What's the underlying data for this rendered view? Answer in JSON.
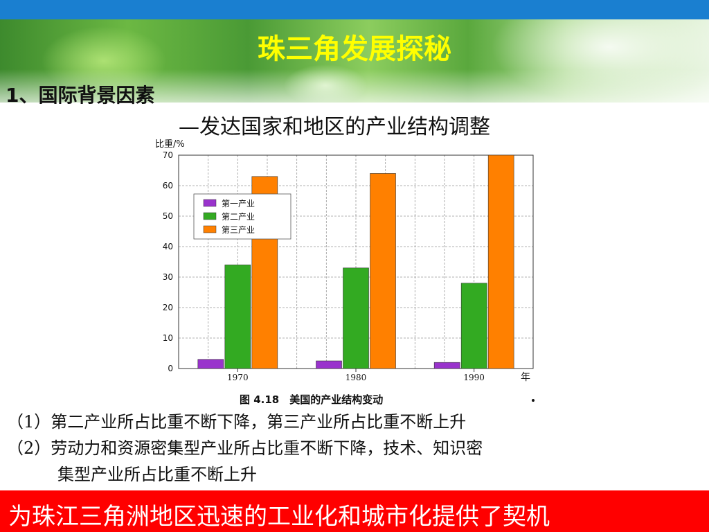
{
  "slide": {
    "title": "珠三角发展探秘",
    "heading": "1、国际背景因素",
    "subheading": "—发达国家和地区的产业结构调整",
    "points": [
      "（1）第二产业所占比重不断下降，第三产业所占比重不断上升",
      "（2）劳动力和资源密集型产业所占比重不断下降，技术、知识密",
      "集型产业所占比重不断上升"
    ],
    "conclusion": "为珠江三角洲地区迅速的工业化和城市化提供了契机"
  },
  "chart_data": {
    "type": "bar",
    "caption": "图 4.18　美国的产业结构变动",
    "ylabel": "比重/%",
    "xlabel": "年",
    "categories": [
      "1970",
      "1980",
      "1990"
    ],
    "ylim": [
      0,
      70
    ],
    "yticks": [
      0,
      10,
      20,
      30,
      40,
      50,
      60,
      70
    ],
    "grid": true,
    "legend_position": "top-left",
    "series": [
      {
        "name": "第一产业",
        "values": [
          3,
          2.5,
          2
        ],
        "color": "#9933cc"
      },
      {
        "name": "第二产业",
        "values": [
          34,
          33,
          28
        ],
        "color": "#33aa22"
      },
      {
        "name": "第三产业",
        "values": [
          63,
          64,
          70
        ],
        "color": "#ff8000"
      }
    ]
  },
  "colors": {
    "title": "#ffff00",
    "top_bar": "#1a7fd0",
    "conclusion_bg": "#ff0000",
    "conclusion_text": "#ffffff"
  }
}
